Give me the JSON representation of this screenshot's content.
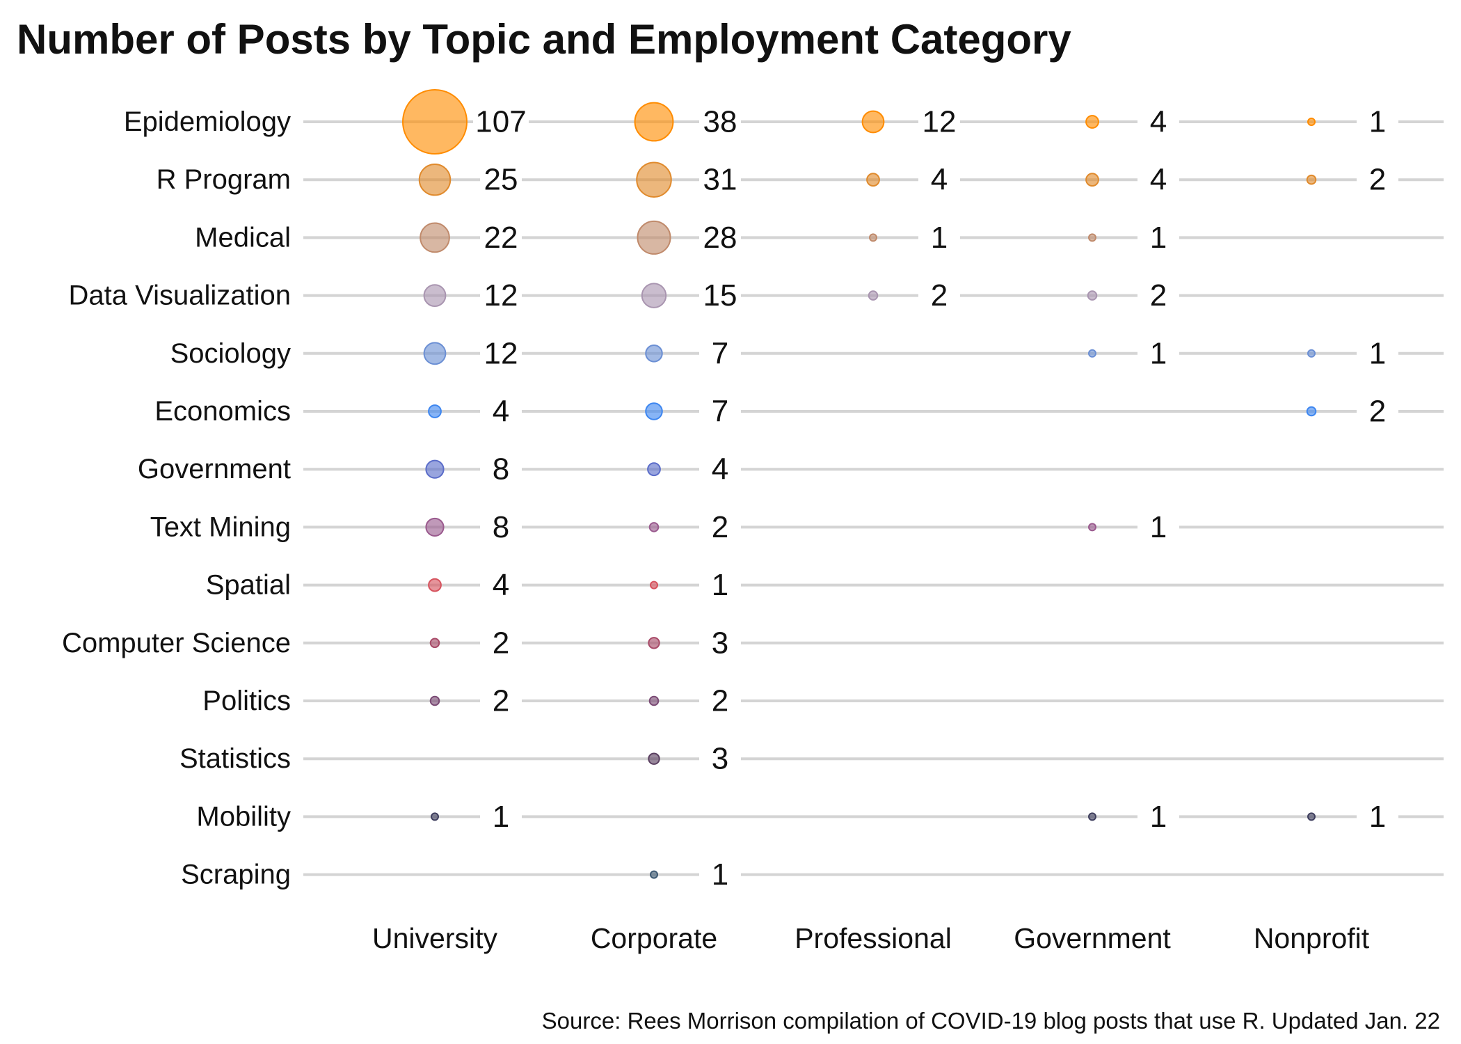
{
  "chart_data": {
    "type": "bubble-dot-grid",
    "title": "Number of Posts by Topic and Employment Category",
    "source": "Source: Rees Morrison compilation of COVID-19 blog posts that use R. Updated Jan. 22",
    "columns": [
      "University",
      "Corporate",
      "Professional",
      "Government",
      "Nonprofit"
    ],
    "rows": [
      {
        "topic": "Epidemiology",
        "color": "#ff8c00",
        "values": [
          107,
          38,
          12,
          4,
          1
        ]
      },
      {
        "topic": "R Program",
        "color": "#e08a2c",
        "values": [
          25,
          31,
          4,
          4,
          2
        ]
      },
      {
        "topic": "Medical",
        "color": "#c08a6b",
        "values": [
          22,
          28,
          1,
          1,
          null
        ]
      },
      {
        "topic": "Data Visualization",
        "color": "#a995b0",
        "values": [
          12,
          15,
          2,
          2,
          null
        ]
      },
      {
        "topic": "Sociology",
        "color": "#6b8fd4",
        "values": [
          12,
          7,
          null,
          1,
          1
        ]
      },
      {
        "topic": "Economics",
        "color": "#3d86f0",
        "values": [
          4,
          7,
          null,
          null,
          2
        ]
      },
      {
        "topic": "Government",
        "color": "#5b6dc9",
        "values": [
          8,
          4,
          null,
          null,
          null
        ]
      },
      {
        "topic": "Text Mining",
        "color": "#9a5a8e",
        "values": [
          8,
          2,
          null,
          1,
          null
        ]
      },
      {
        "topic": "Spatial",
        "color": "#d6535e",
        "values": [
          4,
          1,
          null,
          null,
          null
        ]
      },
      {
        "topic": "Computer Science",
        "color": "#a84a68",
        "values": [
          2,
          3,
          null,
          null,
          null
        ]
      },
      {
        "topic": "Politics",
        "color": "#7a4a74",
        "values": [
          2,
          2,
          null,
          null,
          null
        ]
      },
      {
        "topic": "Statistics",
        "color": "#5a3f60",
        "values": [
          null,
          3,
          null,
          null,
          null
        ]
      },
      {
        "topic": "Mobility",
        "color": "#3f3f5e",
        "values": [
          1,
          null,
          null,
          1,
          1
        ]
      },
      {
        "topic": "Scraping",
        "color": "#3e5a73",
        "values": [
          null,
          1,
          null,
          null,
          null
        ]
      }
    ],
    "size_encoding": "bubble area proportional to number of posts"
  }
}
